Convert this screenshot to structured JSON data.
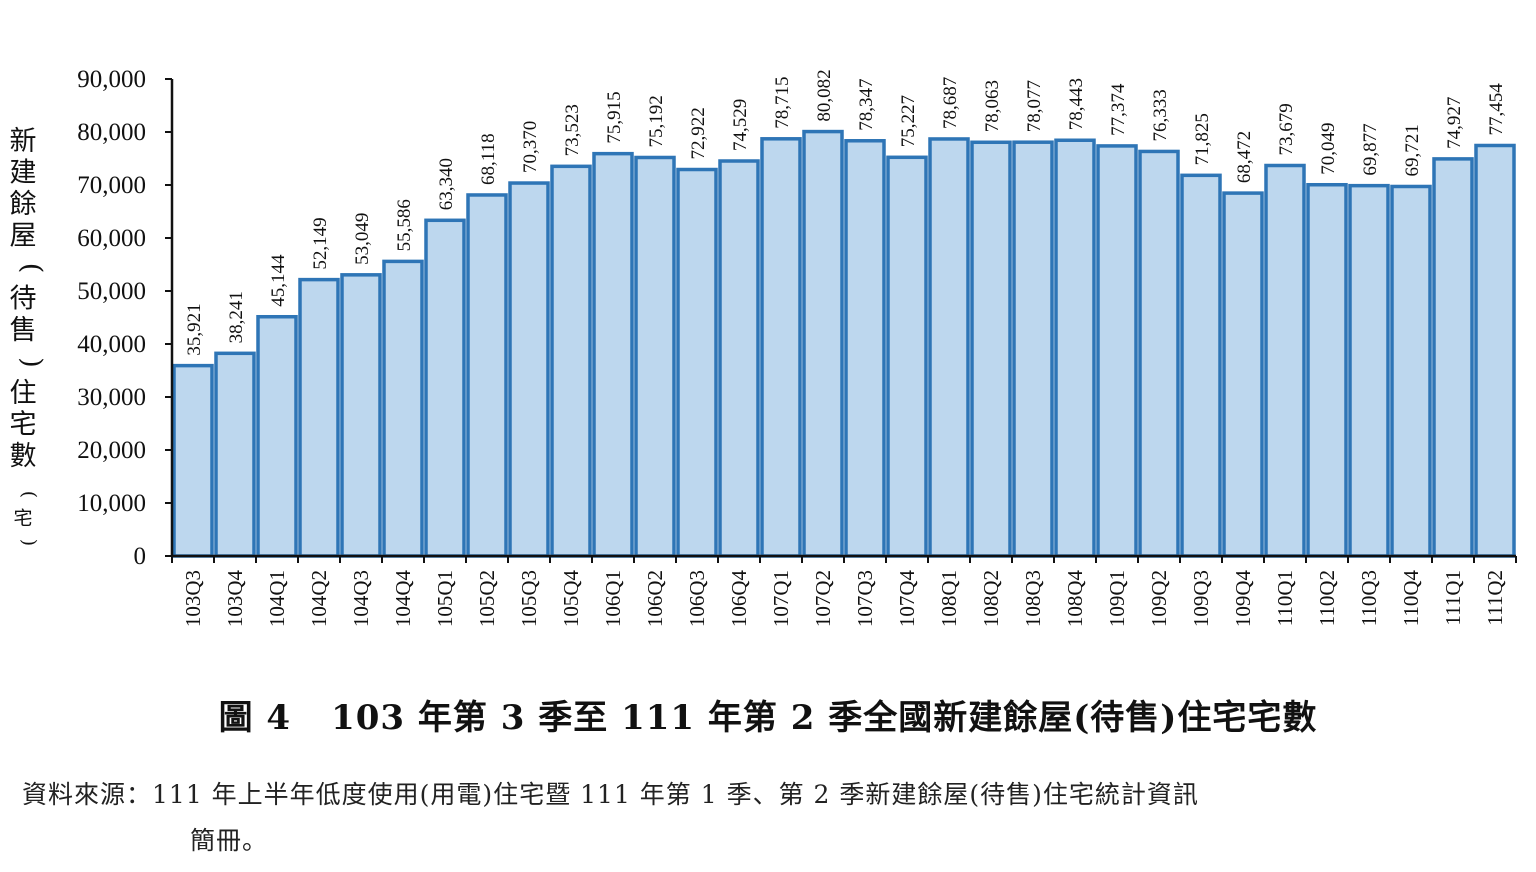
{
  "chart_data": {
    "type": "bar",
    "ylabel": "新建餘屋(待售)住宅數",
    "ylabel_unit": "(宅)",
    "ylim": [
      0,
      90000
    ],
    "yticks": [
      "0",
      "10,000",
      "20,000",
      "30,000",
      "40,000",
      "50,000",
      "60,000",
      "70,000",
      "80,000",
      "90,000"
    ],
    "categories": [
      "103Q3",
      "103Q4",
      "104Q1",
      "104Q2",
      "104Q3",
      "104Q4",
      "105Q1",
      "105Q2",
      "105Q3",
      "105Q4",
      "106Q1",
      "106Q2",
      "106Q3",
      "106Q4",
      "107Q1",
      "107Q2",
      "107Q3",
      "107Q4",
      "108Q1",
      "108Q2",
      "108Q3",
      "108Q4",
      "109Q1",
      "109Q2",
      "109Q3",
      "109Q4",
      "110Q1",
      "110Q2",
      "110Q3",
      "110Q4",
      "111Q1",
      "111Q2"
    ],
    "values": [
      35921,
      38241,
      45144,
      52149,
      53049,
      55586,
      63340,
      68118,
      70370,
      73523,
      75915,
      75192,
      72922,
      74529,
      78715,
      80082,
      78347,
      75227,
      78687,
      78063,
      78077,
      78443,
      77374,
      76333,
      71825,
      68472,
      73679,
      70049,
      69877,
      69721,
      74927,
      77454
    ],
    "data_labels": [
      "35,921",
      "38,241",
      "45,144",
      "52,149",
      "53,049",
      "55,586",
      "63,340",
      "68,118",
      "70,370",
      "73,523",
      "75,915",
      "75,192",
      "72,922",
      "74,529",
      "78,715",
      "80,082",
      "78,347",
      "75,227",
      "78,687",
      "78,063",
      "78,077",
      "78,443",
      "77,374",
      "76,333",
      "71,825",
      "68,472",
      "73,679",
      "70,049",
      "69,877",
      "69,721",
      "74,927",
      "77,454"
    ],
    "grid": false,
    "colors": {
      "bar_fill": "#bdd7ee",
      "bar_stroke": "#2e75b6",
      "axis": "#111111"
    }
  },
  "caption": {
    "number": "圖 4",
    "text": "103 年第 3 季至 111 年第 2 季全國新建餘屋(待售)住宅宅數"
  },
  "source": {
    "label": "資料來源：",
    "text": "111 年上半年低度使用(用電)住宅暨 111 年第 1 季、第 2 季新建餘屋(待售)住宅統計資訊",
    "continuation": "簡冊。"
  }
}
